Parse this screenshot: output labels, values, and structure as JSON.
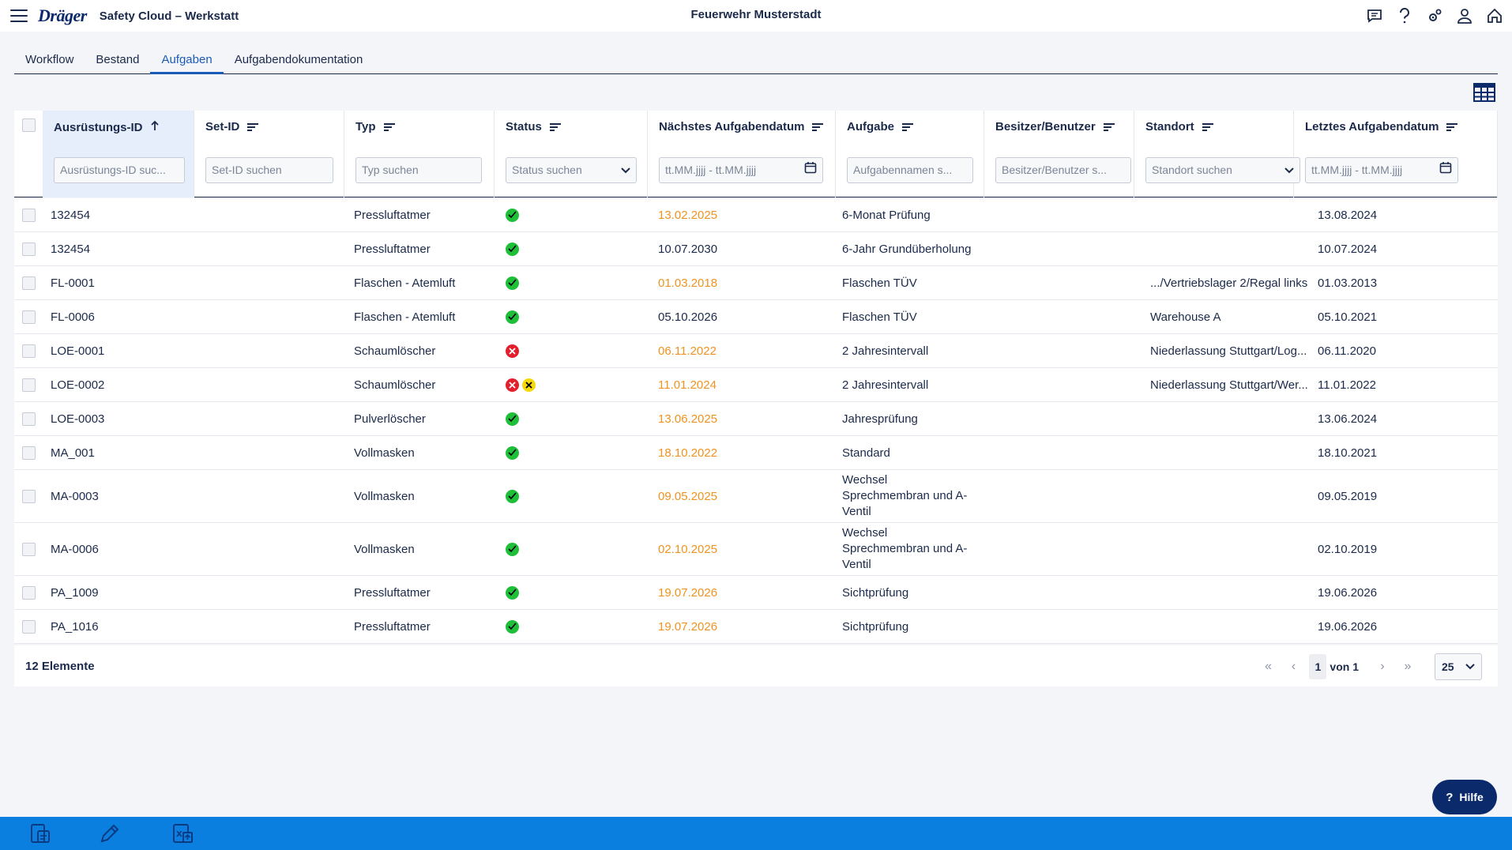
{
  "header": {
    "logo": "Dräger",
    "app_title": "Safety Cloud – Werkstatt",
    "organization": "Feuerwehr Musterstadt",
    "icons": [
      "menu-icon",
      "chat-icon",
      "help-icon",
      "settings-icon",
      "user-icon",
      "home-icon"
    ]
  },
  "tabs": [
    {
      "label": "Workflow",
      "active": false
    },
    {
      "label": "Bestand",
      "active": false
    },
    {
      "label": "Aufgaben",
      "active": true
    },
    {
      "label": "Aufgabendokumentation",
      "active": false
    }
  ],
  "table": {
    "columns": [
      {
        "label": "Ausrüstungs-ID",
        "filter_placeholder": "Ausrüstungs-ID suc...",
        "filter_type": "text",
        "sort": "asc"
      },
      {
        "label": "Set-ID",
        "filter_placeholder": "Set-ID suchen",
        "filter_type": "text"
      },
      {
        "label": "Typ",
        "filter_placeholder": "Typ suchen",
        "filter_type": "text"
      },
      {
        "label": "Status",
        "filter_placeholder": "Status suchen",
        "filter_type": "select"
      },
      {
        "label": "Nächstes Aufgabendatum",
        "filter_placeholder": "tt.MM.jjjj - tt.MM.jjjj",
        "filter_type": "date"
      },
      {
        "label": "Aufgabe",
        "filter_placeholder": "Aufgabennamen s...",
        "filter_type": "text"
      },
      {
        "label": "Besitzer/Benutzer",
        "filter_placeholder": "Besitzer/Benutzer s...",
        "filter_type": "text"
      },
      {
        "label": "Standort",
        "filter_placeholder": "Standort suchen",
        "filter_type": "select"
      },
      {
        "label": "Letztes Aufgabendatum",
        "filter_placeholder": "tt.MM.jjjj - tt.MM.jjjj",
        "filter_type": "date"
      }
    ],
    "rows": [
      {
        "id": "132454",
        "set_id": "",
        "typ": "Pressluftatmer",
        "status": [
          "ok"
        ],
        "next_date": "13.02.2025",
        "overdue": true,
        "task": "6-Monat Prüfung",
        "owner": "",
        "location": "",
        "last_date": "13.08.2024"
      },
      {
        "id": "132454",
        "set_id": "",
        "typ": "Pressluftatmer",
        "status": [
          "ok"
        ],
        "next_date": "10.07.2030",
        "overdue": false,
        "task": "6-Jahr Grundüberholung",
        "owner": "",
        "location": "",
        "last_date": "10.07.2024"
      },
      {
        "id": "FL-0001",
        "set_id": "",
        "typ": "Flaschen - Atemluft",
        "status": [
          "ok"
        ],
        "next_date": "01.03.2018",
        "overdue": true,
        "task": "Flaschen TÜV",
        "owner": "",
        "location": ".../Vertriebslager 2/Regal links",
        "last_date": "01.03.2013"
      },
      {
        "id": "FL-0006",
        "set_id": "",
        "typ": "Flaschen - Atemluft",
        "status": [
          "ok"
        ],
        "next_date": "05.10.2026",
        "overdue": false,
        "task": "Flaschen TÜV",
        "owner": "",
        "location": "Warehouse A",
        "last_date": "05.10.2021"
      },
      {
        "id": "LOE-0001",
        "set_id": "",
        "typ": "Schaumlöscher",
        "status": [
          "err"
        ],
        "next_date": "06.11.2022",
        "overdue": true,
        "task": "2 Jahresintervall",
        "owner": "",
        "location": "Niederlassung Stuttgart/Log...",
        "last_date": "06.11.2020"
      },
      {
        "id": "LOE-0002",
        "set_id": "",
        "typ": "Schaumlöscher",
        "status": [
          "err",
          "warn"
        ],
        "next_date": "11.01.2024",
        "overdue": true,
        "task": "2 Jahresintervall",
        "owner": "",
        "location": "Niederlassung Stuttgart/Wer...",
        "last_date": "11.01.2022"
      },
      {
        "id": "LOE-0003",
        "set_id": "",
        "typ": "Pulverlöscher",
        "status": [
          "ok"
        ],
        "next_date": "13.06.2025",
        "overdue": true,
        "task": "Jahresprüfung",
        "owner": "",
        "location": "",
        "last_date": "13.06.2024"
      },
      {
        "id": "MA_001",
        "set_id": "",
        "typ": "Vollmasken",
        "status": [
          "ok"
        ],
        "next_date": "18.10.2022",
        "overdue": true,
        "task": "Standard",
        "owner": "",
        "location": "",
        "last_date": "18.10.2021"
      },
      {
        "id": "MA-0003",
        "set_id": "",
        "typ": "Vollmasken",
        "status": [
          "ok"
        ],
        "next_date": "09.05.2025",
        "overdue": true,
        "task": "Wechsel Sprechmembran und A-Ventil",
        "owner": "",
        "location": "",
        "last_date": "09.05.2019",
        "tall": true
      },
      {
        "id": "MA-0006",
        "set_id": "",
        "typ": "Vollmasken",
        "status": [
          "ok"
        ],
        "next_date": "02.10.2025",
        "overdue": true,
        "task": "Wechsel Sprechmembran und A-Ventil",
        "owner": "",
        "location": "",
        "last_date": "02.10.2019",
        "tall": true
      },
      {
        "id": "PA_1009",
        "set_id": "",
        "typ": "Pressluftatmer",
        "status": [
          "ok"
        ],
        "next_date": "19.07.2026",
        "overdue": true,
        "task": "Sichtprüfung",
        "owner": "",
        "location": "",
        "last_date": "19.06.2026"
      },
      {
        "id": "PA_1016",
        "set_id": "",
        "typ": "Pressluftatmer",
        "status": [
          "ok"
        ],
        "next_date": "19.07.2026",
        "overdue": true,
        "task": "Sichtprüfung",
        "owner": "",
        "location": "",
        "last_date": "19.06.2026"
      }
    ]
  },
  "footer": {
    "count_label": "12 Elemente",
    "page": "1",
    "of_label": "von 1",
    "page_size": "25"
  },
  "help_button": {
    "label": "Hilfe"
  },
  "colors": {
    "accent": "#1b5bb8",
    "overdue": "#f0921f",
    "bottom_bar": "#0a7fe0",
    "brand": "#0a2a6b"
  }
}
